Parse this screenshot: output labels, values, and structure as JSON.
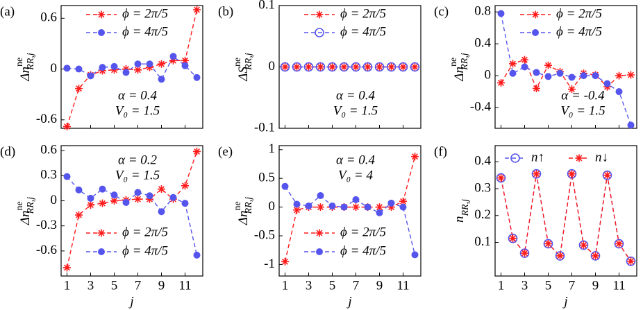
{
  "chart_data": [
    {
      "type": "line",
      "panel_label": "(a)",
      "ylabel": {
        "main": "Δn",
        "sup": "ne",
        "sub": "RR,j"
      },
      "x": [
        1,
        2,
        3,
        4,
        5,
        6,
        7,
        8,
        9,
        10,
        11,
        12
      ],
      "xlim": [
        0.5,
        12.5
      ],
      "xticks": [
        1,
        3,
        5,
        7,
        9,
        11
      ],
      "show_xtick_labels": false,
      "ylim": [
        -0.7,
        0.75
      ],
      "yticks": [
        0.6,
        0,
        -0.6
      ],
      "legend": "upper center",
      "annotation_loc": "lower center",
      "annotations": [
        "α = 0.4",
        "V₀ = 1.5"
      ],
      "series": [
        {
          "name": "ϕ = 2π/5",
          "color": "#ff1a1a",
          "marker": "star",
          "values": [
            -0.68,
            -0.23,
            -0.07,
            -0.02,
            -0.01,
            0.0,
            -0.01,
            0.02,
            0.06,
            0.1,
            0.1,
            0.7
          ]
        },
        {
          "name": "ϕ = 4π/5",
          "color": "#5555ee",
          "marker": "circle",
          "values": [
            0.01,
            0.0,
            -0.08,
            0.02,
            0.03,
            -0.04,
            0.06,
            0.06,
            -0.12,
            0.15,
            0.04,
            -0.1
          ]
        }
      ]
    },
    {
      "type": "line",
      "panel_label": "(b)",
      "ylabel": {
        "main": "ΔS",
        "sup": "ne",
        "sub": "RR,j"
      },
      "x": [
        1,
        2,
        3,
        4,
        5,
        6,
        7,
        8,
        9,
        10,
        11,
        12
      ],
      "xlim": [
        0.5,
        12.5
      ],
      "xticks": [
        1,
        3,
        5,
        7,
        9,
        11
      ],
      "show_xtick_labels": false,
      "ylim": [
        -0.1,
        0.1
      ],
      "yticks": [
        0.1,
        0,
        -0.1
      ],
      "legend": "upper center",
      "annotation_loc": "lower center",
      "annotations": [
        "α = 0.4",
        "V₀ = 1.5"
      ],
      "series": [
        {
          "name": "ϕ = 2π/5",
          "color": "#ff1a1a",
          "marker": "star",
          "values": [
            0,
            0,
            0,
            0,
            0,
            0,
            0,
            0,
            0,
            0,
            0,
            0
          ]
        },
        {
          "name": "ϕ = 4π/5",
          "color": "#5555ee",
          "marker": "open-circle",
          "values": [
            0,
            0,
            0,
            0,
            0,
            0,
            0,
            0,
            0,
            0,
            0,
            0
          ]
        }
      ]
    },
    {
      "type": "line",
      "panel_label": "(c)",
      "ylabel": {
        "main": "Δn",
        "sup": "ne",
        "sub": "RR,j"
      },
      "x": [
        1,
        2,
        3,
        4,
        5,
        6,
        7,
        8,
        9,
        10,
        11,
        12
      ],
      "xlim": [
        0.5,
        12.5
      ],
      "xticks": [
        1,
        3,
        5,
        7,
        9,
        11
      ],
      "show_xtick_labels": false,
      "ylim": [
        -0.66,
        0.88
      ],
      "yticks": [
        0.8,
        0.4,
        0,
        -0.4
      ],
      "legend": "upper center",
      "annotation_loc": "lower right",
      "annotations": [
        "α = -0.4",
        "V₀ = 1.5"
      ],
      "series": [
        {
          "name": "ϕ = 2π/5",
          "color": "#ff1a1a",
          "marker": "star",
          "values": [
            -0.09,
            0.15,
            0.2,
            -0.16,
            0.13,
            0.05,
            -0.17,
            0.03,
            0.01,
            -0.14,
            0.0,
            0.01
          ]
        },
        {
          "name": "ϕ = 4π/5",
          "color": "#5555ee",
          "marker": "circle",
          "values": [
            0.78,
            0.03,
            0.11,
            0.04,
            -0.01,
            0.03,
            -0.02,
            0.0,
            0.0,
            -0.1,
            -0.2,
            -0.62
          ]
        }
      ]
    },
    {
      "type": "line",
      "panel_label": "(d)",
      "ylabel": {
        "main": "Δn",
        "sup": "ne",
        "sub": "RR,j"
      },
      "xlabel": "j",
      "x": [
        1,
        2,
        3,
        4,
        5,
        6,
        7,
        8,
        9,
        10,
        11,
        12
      ],
      "xlim": [
        0.5,
        12.5
      ],
      "xticks": [
        1,
        3,
        5,
        7,
        9,
        11
      ],
      "show_xtick_labels": true,
      "ylim": [
        -0.9,
        0.66
      ],
      "yticks": [
        0.6,
        0.3,
        0,
        -0.3,
        -0.6
      ],
      "legend": "lower center",
      "annotation_loc": "upper center",
      "annotations": [
        "α = 0.2",
        "V₀ = 1.5"
      ],
      "series": [
        {
          "name": "ϕ = 2π/5",
          "color": "#ff1a1a",
          "marker": "star",
          "values": [
            -0.8,
            -0.17,
            -0.05,
            -0.03,
            0.0,
            0.01,
            0.02,
            0.02,
            0.14,
            0.02,
            0.18,
            0.59
          ]
        },
        {
          "name": "ϕ = 4π/5",
          "color": "#5555ee",
          "marker": "circle",
          "values": [
            0.29,
            0.13,
            0.03,
            0.14,
            0.07,
            -0.02,
            0.1,
            0.06,
            -0.13,
            0.04,
            -0.03,
            -0.65
          ]
        }
      ]
    },
    {
      "type": "line",
      "panel_label": "(e)",
      "ylabel": {
        "main": "Δn",
        "sup": "ne",
        "sub": "RR,j"
      },
      "xlabel": "j",
      "x": [
        1,
        2,
        3,
        4,
        5,
        6,
        7,
        8,
        9,
        10,
        11,
        12
      ],
      "xlim": [
        0.5,
        12.5
      ],
      "xticks": [
        1,
        3,
        5,
        7,
        9,
        11
      ],
      "show_xtick_labels": true,
      "ylim": [
        -1.2,
        1.07
      ],
      "yticks": [
        1,
        0.5,
        0,
        -0.5,
        -1
      ],
      "legend": "lower center",
      "annotation_loc": "upper center",
      "annotations": [
        "α = 0.4",
        "V₀ = 4"
      ],
      "series": [
        {
          "name": "ϕ = 2π/5",
          "color": "#ff1a1a",
          "marker": "star",
          "values": [
            -0.95,
            -0.05,
            0,
            0,
            0,
            0,
            0,
            0,
            0,
            0,
            0.1,
            0.88
          ]
        },
        {
          "name": "ϕ = 4π/5",
          "color": "#5555ee",
          "marker": "circle",
          "values": [
            0.36,
            0.05,
            0.02,
            0.2,
            0.02,
            0.0,
            0.13,
            0.0,
            -0.1,
            0.07,
            0.0,
            -0.83
          ]
        }
      ]
    },
    {
      "type": "line",
      "panel_label": "(f)",
      "ylabel": {
        "main": "n",
        "sub": "RR,j"
      },
      "xlabel": "j",
      "x": [
        1,
        2,
        3,
        4,
        5,
        6,
        7,
        8,
        9,
        10,
        11,
        12
      ],
      "xlim": [
        0.5,
        12.5
      ],
      "xticks": [
        1,
        3,
        5,
        7,
        9,
        11
      ],
      "show_xtick_labels": true,
      "ylim": [
        -0.025,
        0.46
      ],
      "yticks": [
        0.4,
        0.3,
        0.2,
        0.1
      ],
      "legend": "upper row",
      "series": [
        {
          "name": "n↑",
          "color": "#5555ee",
          "marker": "open-circle",
          "values": [
            0.34,
            0.115,
            0.06,
            0.355,
            0.095,
            0.05,
            0.355,
            0.09,
            0.05,
            0.35,
            0.095,
            0.03
          ]
        },
        {
          "name": "n↓",
          "color": "#ff1a1a",
          "marker": "star",
          "values": [
            0.34,
            0.115,
            0.06,
            0.355,
            0.095,
            0.05,
            0.355,
            0.09,
            0.05,
            0.35,
            0.095,
            0.03
          ]
        }
      ]
    }
  ]
}
